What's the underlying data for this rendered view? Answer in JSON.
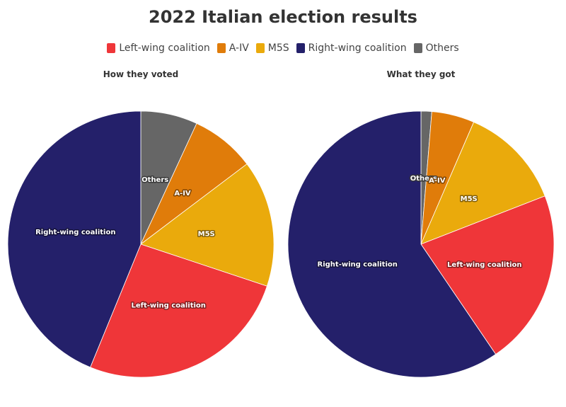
{
  "title": "2022 Italian election results",
  "colors": {
    "Left-wing coalition": "#ef3639",
    "A-IV": "#e07c0a",
    "M5S": "#eaaa0c",
    "Right-wing coalition": "#24206a",
    "Others": "#666666"
  },
  "legend": [
    "Left-wing coalition",
    "A-IV",
    "M5S",
    "Right-wing coalition",
    "Others"
  ],
  "chart_data": [
    {
      "type": "pie",
      "title": "How they voted",
      "slices": [
        {
          "label": "Others",
          "value": 6.9
        },
        {
          "label": "A-IV",
          "value": 7.8
        },
        {
          "label": "M5S",
          "value": 15.4
        },
        {
          "label": "Left-wing coalition",
          "value": 26.1
        },
        {
          "label": "Right-wing coalition",
          "value": 43.8
        }
      ]
    },
    {
      "type": "pie",
      "title": "What they got",
      "slices": [
        {
          "label": "Others",
          "value": 1.3
        },
        {
          "label": "A-IV",
          "value": 5.2
        },
        {
          "label": "M5S",
          "value": 12.6
        },
        {
          "label": "Left-wing coalition",
          "value": 21.4
        },
        {
          "label": "Right-wing coalition",
          "value": 59.5
        }
      ]
    }
  ]
}
